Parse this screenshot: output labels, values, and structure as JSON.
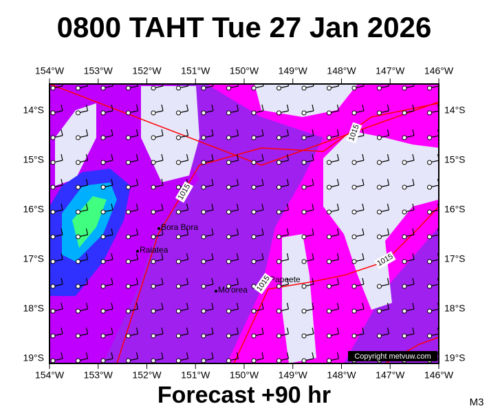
{
  "title": "0800 TAHT Tue 27 Jan 2026",
  "map": {
    "x_labels": [
      "154°W",
      "153°W",
      "152°W",
      "151°W",
      "150°W",
      "149°W",
      "148°W",
      "147°W",
      "146°W"
    ],
    "y_labels": [
      "14°S",
      "15°S",
      "16°S",
      "17°S",
      "18°S",
      "19°S"
    ],
    "places": [
      "Bora Bora",
      "Raiatea",
      "Mo'orea",
      "Papeete"
    ],
    "isobar_labels": [
      "1015",
      "1015",
      "1015",
      "1015"
    ],
    "copyright": "Copyright metvuw.com"
  },
  "footer": {
    "forecast": "Forecast +90 hr",
    "code": "M3"
  }
}
